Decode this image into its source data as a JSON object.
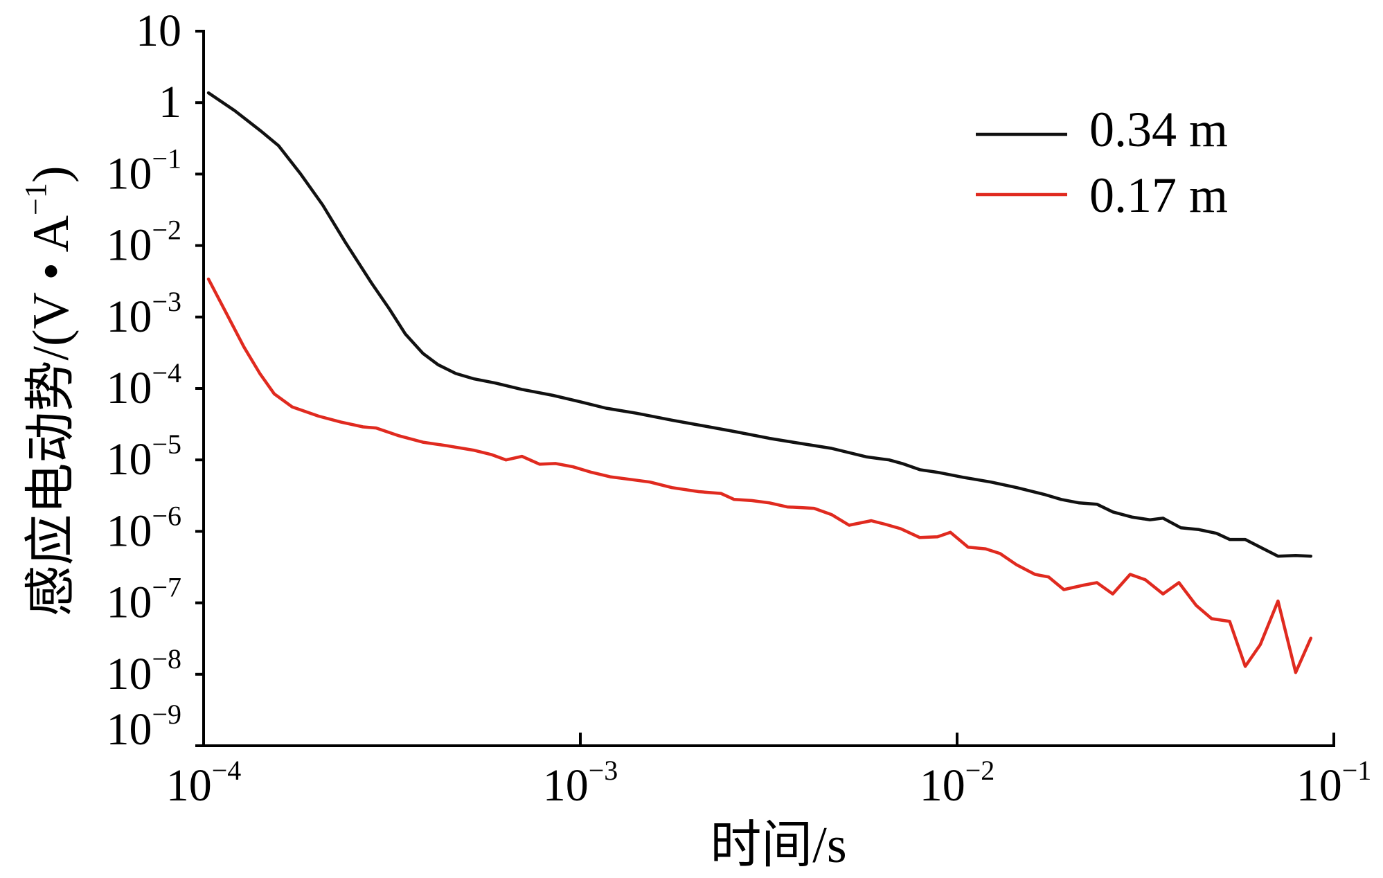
{
  "chart_data": {
    "type": "line",
    "xscale": "log",
    "yscale": "log",
    "xlim": [
      0.0001,
      0.1
    ],
    "ylim": [
      1e-09,
      10
    ],
    "grid": false,
    "legend_position": "top-right",
    "xlabel": "时间/s",
    "ylabel": {
      "text": "感应电动势/(V • A",
      "sup": "−1",
      "tail": ")"
    },
    "x_ticks": [
      {
        "value": 0.0001,
        "base": "10",
        "sup": "−4"
      },
      {
        "value": 0.001,
        "base": "10",
        "sup": "−3"
      },
      {
        "value": 0.01,
        "base": "10",
        "sup": "−2"
      },
      {
        "value": 0.1,
        "base": "10",
        "sup": "−1"
      }
    ],
    "y_ticks": [
      {
        "value": 10,
        "base": "10"
      },
      {
        "value": 1,
        "base": "1"
      },
      {
        "value": 0.1,
        "base": "10",
        "sup": "−1"
      },
      {
        "value": 0.01,
        "base": "10",
        "sup": "−2"
      },
      {
        "value": 0.001,
        "base": "10",
        "sup": "−3"
      },
      {
        "value": 0.0001,
        "base": "10",
        "sup": "−4"
      },
      {
        "value": 1e-05,
        "base": "10",
        "sup": "−5"
      },
      {
        "value": 1e-06,
        "base": "10",
        "sup": "−6"
      },
      {
        "value": 1e-07,
        "base": "10",
        "sup": "−7"
      },
      {
        "value": 1e-08,
        "base": "10",
        "sup": "−8"
      },
      {
        "value": 1e-09,
        "base": "10",
        "sup": "−9"
      }
    ],
    "series": [
      {
        "name": "0.34 m",
        "color": "#111111",
        "points": [
          [
            0.000103,
            1.37
          ],
          [
            0.000121,
            0.77
          ],
          [
            0.000142,
            0.4
          ],
          [
            0.000158,
            0.25
          ],
          [
            0.000181,
            0.1
          ],
          [
            0.000207,
            0.037
          ],
          [
            0.000238,
            0.011
          ],
          [
            0.000279,
            0.003
          ],
          [
            0.000311,
            0.0013
          ],
          [
            0.000343,
            0.00058
          ],
          [
            0.000382,
            0.00031
          ],
          [
            0.000419,
            0.000215
          ],
          [
            0.000467,
            0.000162
          ],
          [
            0.00052,
            0.000137
          ],
          [
            0.000595,
            0.000119
          ],
          [
            0.0007,
            9.7e-05
          ],
          [
            0.000846,
            8e-05
          ],
          [
            0.001,
            6.5e-05
          ],
          [
            0.00117,
            5.3e-05
          ],
          [
            0.00141,
            4.5e-05
          ],
          [
            0.00175,
            3.6e-05
          ],
          [
            0.00212,
            3e-05
          ],
          [
            0.00256,
            2.5e-05
          ],
          [
            0.00318,
            2e-05
          ],
          [
            0.00384,
            1.7e-05
          ],
          [
            0.00464,
            1.45e-05
          ],
          [
            0.00576,
            1.1e-05
          ],
          [
            0.0066,
            1e-05
          ],
          [
            0.00715,
            8.9e-06
          ],
          [
            0.00796,
            7.3e-06
          ],
          [
            0.00887,
            6.7e-06
          ],
          [
            0.0104,
            5.7e-06
          ],
          [
            0.0123,
            4.9e-06
          ],
          [
            0.0144,
            4.1e-06
          ],
          [
            0.017,
            3.3e-06
          ],
          [
            0.0189,
            2.8e-06
          ],
          [
            0.0211,
            2.5e-06
          ],
          [
            0.0235,
            2.4e-06
          ],
          [
            0.0259,
            1.87e-06
          ],
          [
            0.0292,
            1.58e-06
          ],
          [
            0.0325,
            1.45e-06
          ],
          [
            0.0352,
            1.53e-06
          ],
          [
            0.0393,
            1.12e-06
          ],
          [
            0.0438,
            1.06e-06
          ],
          [
            0.0488,
            9.4e-07
          ],
          [
            0.0529,
            7.7e-07
          ],
          [
            0.0582,
            7.7e-07
          ],
          [
            0.0638,
            6e-07
          ],
          [
            0.0711,
            4.5e-07
          ],
          [
            0.0792,
            4.6e-07
          ],
          [
            0.0869,
            4.5e-07
          ]
        ]
      },
      {
        "name": "0.17 m",
        "color": "#e02a1f",
        "points": [
          [
            0.000103,
            0.0034
          ],
          [
            0.000115,
            0.00112
          ],
          [
            0.000128,
            0.00038
          ],
          [
            0.000141,
            0.000162
          ],
          [
            0.000154,
            8.4e-05
          ],
          [
            0.000172,
            5.5e-05
          ],
          [
            0.000202,
            4.1e-05
          ],
          [
            0.000231,
            3.4e-05
          ],
          [
            0.000265,
            2.9e-05
          ],
          [
            0.000287,
            2.8e-05
          ],
          [
            0.000328,
            2.2e-05
          ],
          [
            0.000382,
            1.77e-05
          ],
          [
            0.000442,
            1.58e-05
          ],
          [
            0.00052,
            1.37e-05
          ],
          [
            0.00058,
            1.19e-05
          ],
          [
            0.000635,
            1e-05
          ],
          [
            0.0007,
            1.12e-05
          ],
          [
            0.00078,
            8.7e-06
          ],
          [
            0.00086,
            8.9e-06
          ],
          [
            0.000957,
            8e-06
          ],
          [
            0.00107,
            6.7e-06
          ],
          [
            0.0012,
            5.8e-06
          ],
          [
            0.00137,
            5.3e-06
          ],
          [
            0.00153,
            4.9e-06
          ],
          [
            0.00175,
            4.1e-06
          ],
          [
            0.00206,
            3.6e-06
          ],
          [
            0.00236,
            3.4e-06
          ],
          [
            0.00256,
            2.8e-06
          ],
          [
            0.00285,
            2.7e-06
          ],
          [
            0.00318,
            2.5e-06
          ],
          [
            0.00354,
            2.2e-06
          ],
          [
            0.00417,
            2.1e-06
          ],
          [
            0.00464,
            1.72e-06
          ],
          [
            0.00517,
            1.22e-06
          ],
          [
            0.00592,
            1.41e-06
          ],
          [
            0.00643,
            1.26e-06
          ],
          [
            0.00708,
            1.09e-06
          ],
          [
            0.00796,
            8.2e-07
          ],
          [
            0.00887,
            8.4e-07
          ],
          [
            0.0096,
            9.7e-07
          ],
          [
            0.0107,
            6e-07
          ],
          [
            0.0119,
            5.7e-07
          ],
          [
            0.013,
            4.9e-07
          ],
          [
            0.0144,
            3.4e-07
          ],
          [
            0.0161,
            2.5e-07
          ],
          [
            0.0175,
            2.3e-07
          ],
          [
            0.0192,
            1.53e-07
          ],
          [
            0.0217,
            1.77e-07
          ],
          [
            0.0235,
            1.92e-07
          ],
          [
            0.0259,
            1.33e-07
          ],
          [
            0.0288,
            2.5e-07
          ],
          [
            0.0316,
            2.1e-07
          ],
          [
            0.0352,
            1.33e-07
          ],
          [
            0.0388,
            1.92e-07
          ],
          [
            0.0431,
            9.2e-08
          ],
          [
            0.0474,
            6e-08
          ],
          [
            0.0529,
            5.5e-08
          ],
          [
            0.0582,
            1.29e-08
          ],
          [
            0.0638,
            2.6e-08
          ],
          [
            0.0711,
            1.06e-07
          ],
          [
            0.0792,
            1.06e-08
          ],
          [
            0.0869,
            3.2e-08
          ]
        ]
      }
    ]
  }
}
